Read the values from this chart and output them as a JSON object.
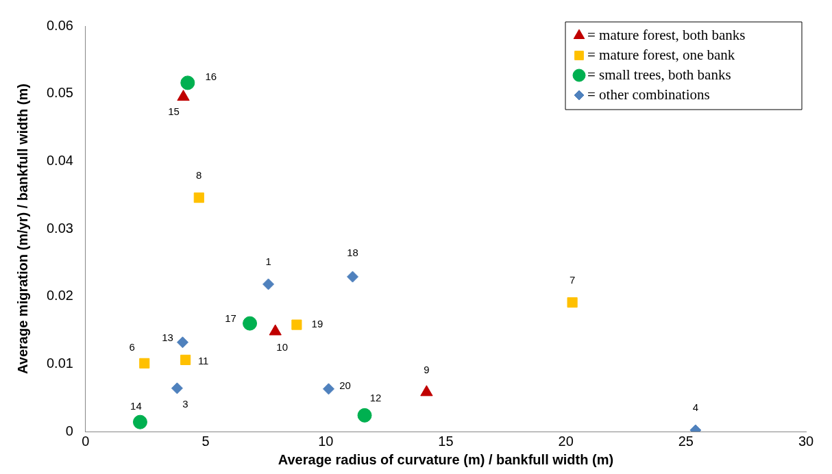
{
  "chart_data": {
    "type": "scatter",
    "xlabel": "Average radius of curvature (m) / bankfull width (m)",
    "ylabel": "Average migration (m/yr) / bankfull width (m)",
    "xlim": [
      0,
      30
    ],
    "xticks": [
      0,
      5,
      10,
      15,
      20,
      25,
      30
    ],
    "ylim": [
      0,
      0.06
    ],
    "yticks": [
      0,
      0.01,
      0.02,
      0.03,
      0.04,
      0.05,
      0.06
    ],
    "grid": false,
    "legend": "top right",
    "series": [
      {
        "name": "= mature forest, both banks",
        "color": "#c00000",
        "marker": "triangle",
        "x": [
          4.07,
          7.9,
          14.2
        ],
        "values": [
          0.0495,
          0.0148,
          0.0058
        ]
      },
      {
        "name": "= mature forest, one bank",
        "color": "#ffc000",
        "marker": "square",
        "x": [
          4.72,
          2.45,
          4.16,
          8.79,
          20.27
        ],
        "values": [
          0.0346,
          0.0101,
          0.0106,
          0.0158,
          0.0191
        ]
      },
      {
        "name": "= small trees, both banks",
        "color": "#00b050",
        "marker": "circle",
        "x": [
          4.25,
          6.84,
          2.27,
          11.62
        ],
        "values": [
          0.0516,
          0.016,
          0.0014,
          0.0024
        ]
      },
      {
        "name": "= other combinations",
        "color": "#4f81bd",
        "marker": "diamond",
        "x": [
          7.61,
          11.12,
          4.04,
          3.81,
          10.12,
          25.4
        ],
        "values": [
          0.0218,
          0.0229,
          0.0132,
          0.0064,
          0.0063,
          0.0002
        ]
      }
    ],
    "annotations": [
      {
        "text": "1",
        "x": 7.61,
        "y": 0.0218
      },
      {
        "text": "3",
        "x": 3.81,
        "y": 0.0064
      },
      {
        "text": "4",
        "x": 25.4,
        "y": 0.0002
      },
      {
        "text": "6",
        "x": 2.45,
        "y": 0.0101
      },
      {
        "text": "7",
        "x": 20.27,
        "y": 0.0191
      },
      {
        "text": "8",
        "x": 4.72,
        "y": 0.0346
      },
      {
        "text": "9",
        "x": 14.2,
        "y": 0.0058
      },
      {
        "text": "10",
        "x": 7.9,
        "y": 0.0148
      },
      {
        "text": "11",
        "x": 4.16,
        "y": 0.0106
      },
      {
        "text": "12",
        "x": 11.62,
        "y": 0.0024
      },
      {
        "text": "13",
        "x": 4.04,
        "y": 0.0132
      },
      {
        "text": "14",
        "x": 2.27,
        "y": 0.0014
      },
      {
        "text": "15",
        "x": 4.07,
        "y": 0.0495
      },
      {
        "text": "16",
        "x": 4.25,
        "y": 0.0516
      },
      {
        "text": "17",
        "x": 6.84,
        "y": 0.016
      },
      {
        "text": "18",
        "x": 11.12,
        "y": 0.0229
      },
      {
        "text": "19",
        "x": 8.79,
        "y": 0.0158
      },
      {
        "text": "20",
        "x": 10.12,
        "y": 0.0063
      }
    ]
  }
}
